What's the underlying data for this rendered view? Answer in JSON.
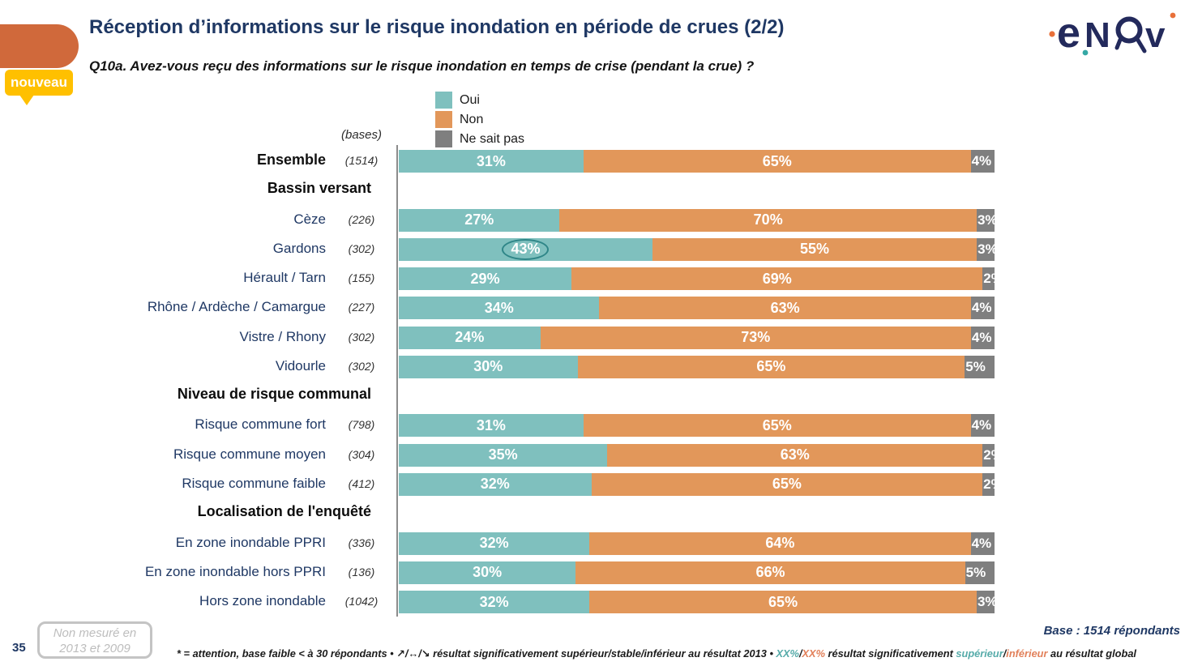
{
  "header": {
    "title": "Réception d’informations sur le risque inondation en période de crues (2/2)",
    "question": "Q10a. Avez-vous reçu des informations sur le risque inondation en temps de crise (pendant la crue) ?",
    "new_badge": "nouveau",
    "logo": "enov"
  },
  "legend": {
    "items": [
      "Oui",
      "Non",
      "Ne sait pas"
    ]
  },
  "bases_caption": "(bases)",
  "chart_data": {
    "type": "bar",
    "orientation": "horizontal",
    "stacked": true,
    "unit": "%",
    "xlim": [
      0,
      100
    ],
    "series": [
      "Oui",
      "Non",
      "Ne sait pas"
    ],
    "series_colors": [
      "#7FC0BE",
      "#E2975A",
      "#7F7F7F"
    ],
    "value_labels_shown": true,
    "annotation": "Gardons Oui value (43%) is circled",
    "rows": [
      {
        "type": "data",
        "label": "Ensemble",
        "base": "(1514)",
        "values": [
          31,
          65,
          4
        ],
        "emphasis": true
      },
      {
        "type": "header",
        "label": "Bassin versant"
      },
      {
        "type": "data",
        "label": "Cèze",
        "base": "(226)",
        "values": [
          27,
          70,
          3
        ]
      },
      {
        "type": "data",
        "label": "Gardons",
        "base": "(302)",
        "values": [
          43,
          55,
          3
        ],
        "circled": true
      },
      {
        "type": "data",
        "label": "Hérault / Tarn",
        "base": "(155)",
        "values": [
          29,
          69,
          2
        ]
      },
      {
        "type": "data",
        "label": "Rhône / Ardèche / Camargue",
        "base": "(227)",
        "values": [
          34,
          63,
          4
        ]
      },
      {
        "type": "data",
        "label": "Vistre / Rhony",
        "base": "(302)",
        "values": [
          24,
          73,
          4
        ]
      },
      {
        "type": "data",
        "label": "Vidourle",
        "base": "(302)",
        "values": [
          30,
          65,
          5
        ]
      },
      {
        "type": "header",
        "label": "Niveau de risque communal"
      },
      {
        "type": "data",
        "label": "Risque commune fort",
        "base": "(798)",
        "values": [
          31,
          65,
          4
        ]
      },
      {
        "type": "data",
        "label": "Risque commune moyen",
        "base": "(304)",
        "values": [
          35,
          63,
          2
        ]
      },
      {
        "type": "data",
        "label": "Risque commune faible",
        "base": "(412)",
        "values": [
          32,
          65,
          2
        ]
      },
      {
        "type": "header",
        "label": "Localisation de l'enquêté"
      },
      {
        "type": "data",
        "label": "En zone inondable PPRI",
        "base": "(336)",
        "values": [
          32,
          64,
          4
        ]
      },
      {
        "type": "data",
        "label": "En zone inondable hors PPRI",
        "base": "(136)",
        "values": [
          30,
          66,
          5
        ]
      },
      {
        "type": "data",
        "label": "Hors zone inondable",
        "base": "(1042)",
        "values": [
          32,
          65,
          3
        ]
      }
    ]
  },
  "footer": {
    "page_number": "35",
    "note_box": {
      "line1": "Non mesuré en",
      "line2": "2013 et 2009"
    },
    "base_note": "Base : 1514 répondants",
    "footnote": {
      "p1": "* = attention, base faible < à 30 répondants • ",
      "p2": "↗/↔/↘",
      "p3": " résultat significativement ",
      "p4": "supérieur/stable/inférieur",
      "p5": " au résultat 2013 • ",
      "p6": "XX%",
      "p7": "/",
      "p8": "XX%",
      "p9": " résultat significativement ",
      "p10": "supérieur",
      "p11": "/",
      "p12": "inférieur",
      "p13": " au résultat global"
    }
  },
  "colors": {
    "title_navy": "#1F3864",
    "accent_tab_orange": "#D0693B",
    "badge_yellow": "#FFC000",
    "bar_teal": "#7FC0BE",
    "bar_orange": "#E2975A",
    "bar_gray": "#7F7F7F",
    "circle_annotation": "#2F8688",
    "footnote_teal": "#56ABA9",
    "footnote_orange": "#E2815B"
  }
}
